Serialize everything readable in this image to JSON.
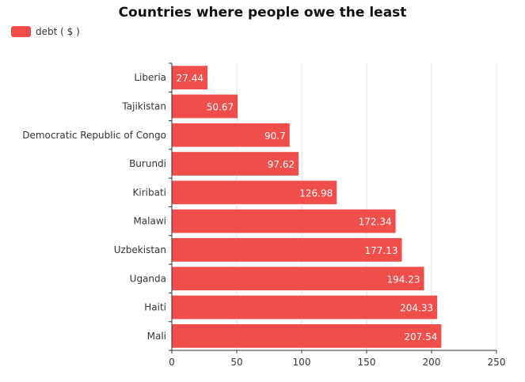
{
  "chart_data": {
    "type": "bar",
    "orientation": "horizontal",
    "title": "Countries where people owe the least",
    "legend": {
      "position": "top-left"
    },
    "series": [
      {
        "name": "debt ( $ )",
        "color": "#f04e4b",
        "values": [
          27.44,
          50.67,
          90.7,
          97.62,
          126.98,
          172.34,
          177.13,
          194.23,
          204.33,
          207.54
        ]
      }
    ],
    "categories": [
      "Liberia",
      "Tajikistan",
      "Democratic Republic of Congo",
      "Burundi",
      "Kiribati",
      "Malawi",
      "Uzbekistan",
      "Uganda",
      "Haiti",
      "Mali"
    ],
    "xlim": [
      0,
      250
    ],
    "xticks": [
      0,
      50,
      100,
      150,
      200,
      250
    ],
    "grid": true,
    "data_labels": true
  }
}
